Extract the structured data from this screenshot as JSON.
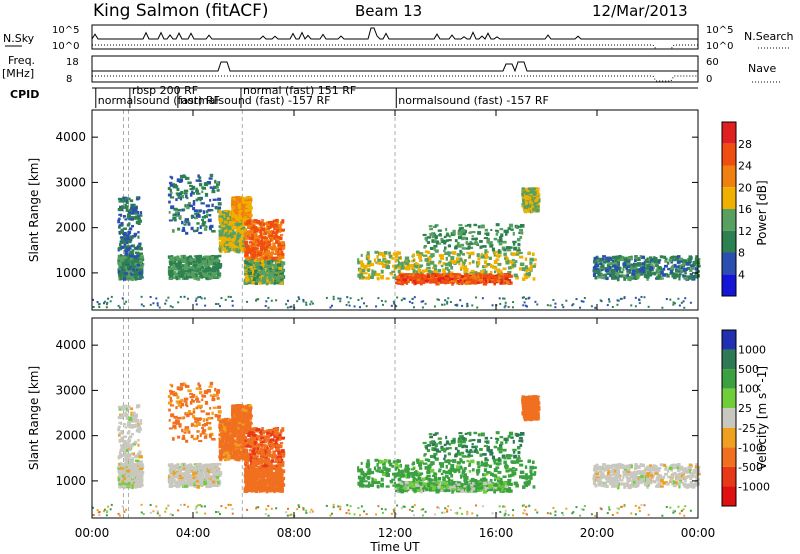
{
  "header": {
    "title": "King Salmon (fitACF)",
    "beam": "Beam 13",
    "date": "12/Mar/2013"
  },
  "mini_panels": {
    "nsky_label": "N.Sky",
    "nsearch_label": "N.Search",
    "nsky_ticks": [
      "10^5",
      "10^0"
    ],
    "nsearch_ticks": [
      "10^5",
      "10^0"
    ],
    "freq_label": "Freq.",
    "freq_unit": "[MHz]",
    "freq_ticks": [
      "18",
      "8"
    ],
    "nave_label": "Nave",
    "nave_ticks": [
      "60",
      "0"
    ],
    "cpid_label": "CPID"
  },
  "cpid_segments": [
    {
      "label": "normalsound (fast) RF",
      "t": 0.15
    },
    {
      "label": "rbsp 200 RF",
      "t": 1.5
    },
    {
      "label": "normalsound (fast) -157 RF",
      "t": 3.4
    },
    {
      "label": "normal (fast) 151 RF",
      "t": 5.9
    },
    {
      "label": "normalsound (fast) -157 RF",
      "t": 12.05
    }
  ],
  "axes": {
    "y_label": "Slant Range [km]",
    "y_ticks": [
      1000,
      2000,
      3000,
      4000
    ],
    "x_label": "Time UT",
    "x_ticks": [
      "00:00",
      "04:00",
      "08:00",
      "12:00",
      "16:00",
      "20:00",
      "00:00"
    ],
    "xlim_hours": [
      0,
      24
    ],
    "ylim_km": [
      180,
      4600
    ]
  },
  "power_scale": {
    "label": "Power [dB]",
    "ticks": [
      "28",
      "24",
      "20",
      "16",
      "12",
      "8",
      "4"
    ],
    "colors": [
      "#e02020",
      "#f04d10",
      "#f08010",
      "#f0b000",
      "#58a060",
      "#2d8050",
      "#2a4fb0",
      "#1515d8"
    ]
  },
  "velocity_scale": {
    "label": "Velocity [m s^-1]",
    "ticks": [
      "1000",
      "500",
      "100",
      "25",
      "-25",
      "-100",
      "-500",
      "-1000"
    ],
    "colors": [
      "#2030b0",
      "#2d7a55",
      "#3aa040",
      "#6fce3a",
      "#c8c8c0",
      "#f0a020",
      "#f07020",
      "#e83818",
      "#e01010"
    ]
  },
  "chart_data": {
    "type": "heatmap",
    "title": "King Salmon (fitACF)",
    "xlabel": "Time UT",
    "ylabel": "Slant Range [km]",
    "xlim": [
      0,
      24
    ],
    "ylim": [
      180,
      4600
    ],
    "dashed_lines_hours": [
      1.25,
      1.45,
      5.95,
      12.0
    ],
    "scatter_regions": [
      {
        "t": [
          1.0,
          1.9
        ],
        "r": [
          900,
          1400
        ],
        "power": 9,
        "vel": 0
      },
      {
        "t": [
          1.0,
          1.9
        ],
        "r": [
          1400,
          2700
        ],
        "power": 6,
        "vel": 0,
        "sparse": true
      },
      {
        "t": [
          3.0,
          5.0
        ],
        "r": [
          900,
          1400
        ],
        "power": 10,
        "vel": 0
      },
      {
        "t": [
          3.0,
          5.0
        ],
        "r": [
          1900,
          3200
        ],
        "power": 7,
        "vel": -150,
        "sparse": true
      },
      {
        "t": [
          5.0,
          6.0
        ],
        "r": [
          1500,
          2400
        ],
        "power": 14,
        "vel": -200
      },
      {
        "t": [
          5.5,
          6.2
        ],
        "r": [
          2200,
          2700
        ],
        "power": 18,
        "vel": -200
      },
      {
        "t": [
          6.0,
          7.5
        ],
        "r": [
          1300,
          2200
        ],
        "power": 22,
        "vel": -400
      },
      {
        "t": [
          6.0,
          7.5
        ],
        "r": [
          800,
          1300
        ],
        "power": 12,
        "vel": -300
      },
      {
        "t": [
          10.5,
          17.5
        ],
        "r": [
          900,
          1500
        ],
        "power": 14,
        "vel": 150
      },
      {
        "t": [
          12.0,
          16.5
        ],
        "r": [
          800,
          1000
        ],
        "power": 24,
        "vel": 60
      },
      {
        "t": [
          13.0,
          17.0
        ],
        "r": [
          1500,
          2100
        ],
        "power": 10,
        "vel": 300,
        "sparse": true
      },
      {
        "t": [
          17.0,
          17.6
        ],
        "r": [
          2400,
          2900
        ],
        "power": 14,
        "vel": -300
      },
      {
        "t": [
          19.8,
          24.0
        ],
        "r": [
          900,
          1400
        ],
        "power": 8,
        "vel": 0
      }
    ]
  }
}
